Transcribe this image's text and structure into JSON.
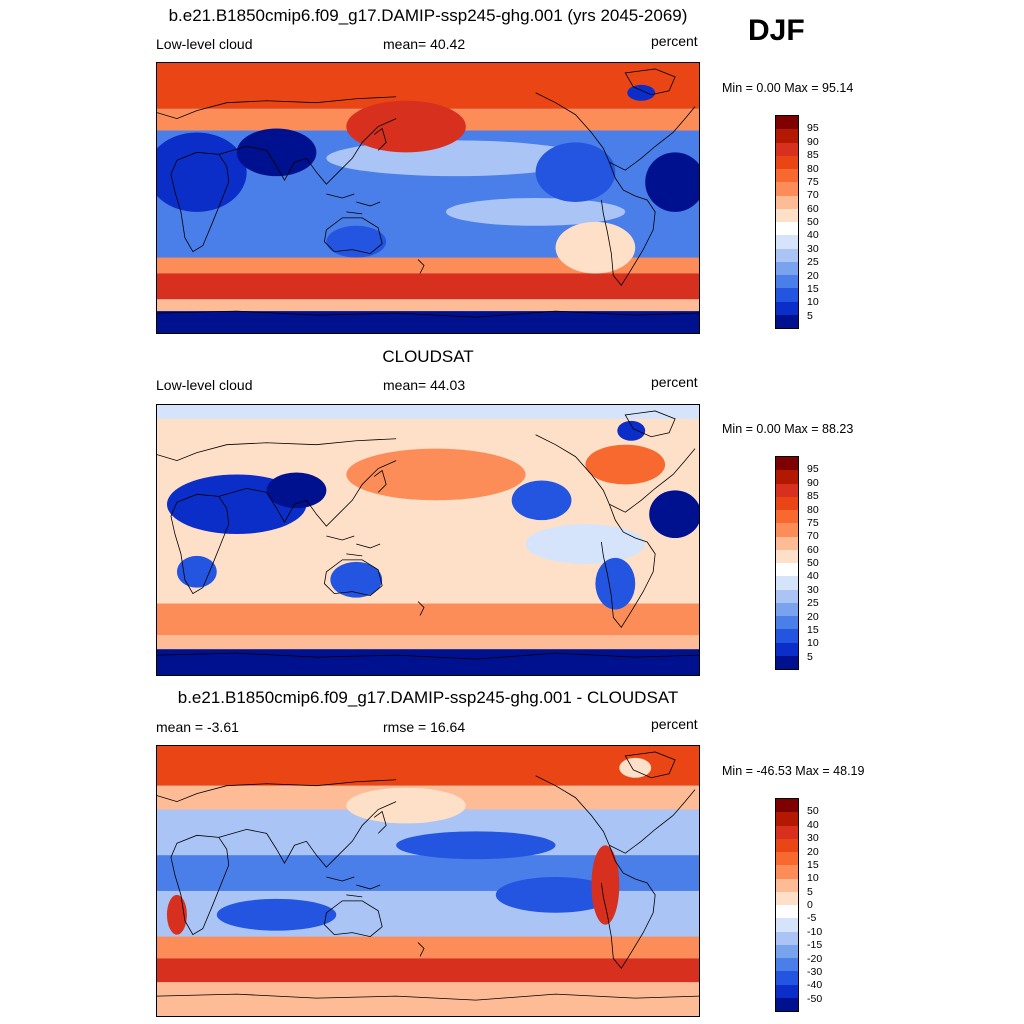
{
  "season": "DJF",
  "panels": [
    {
      "id": "model",
      "title": "b.e21.B1850cmip6.f09_g17.DAMIP-ssp245-ghg.001 (yrs 2045-2069)",
      "left_label": "Low-level cloud",
      "center_label": "mean=  40.42",
      "right_label": "percent",
      "minmax": "Min =   0.00 Max =  95.14",
      "colorbar": {
        "labels": [
          "95",
          "90",
          "85",
          "80",
          "75",
          "70",
          "60",
          "50",
          "40",
          "30",
          "25",
          "20",
          "15",
          "10",
          "5"
        ],
        "colors": [
          "#7f0000",
          "#b31800",
          "#d7301f",
          "#ea4514",
          "#f7692f",
          "#fc8d59",
          "#fdbb96",
          "#fee0c8",
          "#ffffff",
          "#d6e4fb",
          "#a9c4f5",
          "#7aa3ee",
          "#4a7ee8",
          "#2355e0",
          "#0c2ec8",
          "#00118f"
        ]
      },
      "map_type": "model"
    },
    {
      "id": "obs",
      "title": "CLOUDSAT",
      "left_label": "Low-level cloud",
      "center_label": "mean=  44.03",
      "right_label": "percent",
      "minmax": "Min =   0.00 Max =  88.23",
      "colorbar": {
        "labels": [
          "95",
          "90",
          "85",
          "80",
          "75",
          "70",
          "60",
          "50",
          "40",
          "30",
          "25",
          "20",
          "15",
          "10",
          "5"
        ],
        "colors": [
          "#7f0000",
          "#b31800",
          "#d7301f",
          "#ea4514",
          "#f7692f",
          "#fc8d59",
          "#fdbb96",
          "#fee0c8",
          "#ffffff",
          "#d6e4fb",
          "#a9c4f5",
          "#7aa3ee",
          "#4a7ee8",
          "#2355e0",
          "#0c2ec8",
          "#00118f"
        ]
      },
      "map_type": "obs"
    },
    {
      "id": "diff",
      "title": "b.e21.B1850cmip6.f09_g17.DAMIP-ssp245-ghg.001 - CLOUDSAT",
      "left_label": "mean =  -3.61",
      "center_label": "rmse =  16.64",
      "right_label": "percent",
      "minmax": "Min = -46.53 Max =  48.19",
      "colorbar": {
        "labels": [
          "50",
          "40",
          "30",
          "20",
          "15",
          "10",
          "5",
          "0",
          "-5",
          "-10",
          "-15",
          "-20",
          "-30",
          "-40",
          "-50"
        ],
        "colors": [
          "#7f0000",
          "#b31800",
          "#d7301f",
          "#ea4514",
          "#f7692f",
          "#fc8d59",
          "#fdbb96",
          "#fee0c8",
          "#ffffff",
          "#d6e4fb",
          "#a9c4f5",
          "#7aa3ee",
          "#4a7ee8",
          "#2355e0",
          "#0c2ec8",
          "#00118f"
        ]
      },
      "map_type": "diff"
    }
  ]
}
